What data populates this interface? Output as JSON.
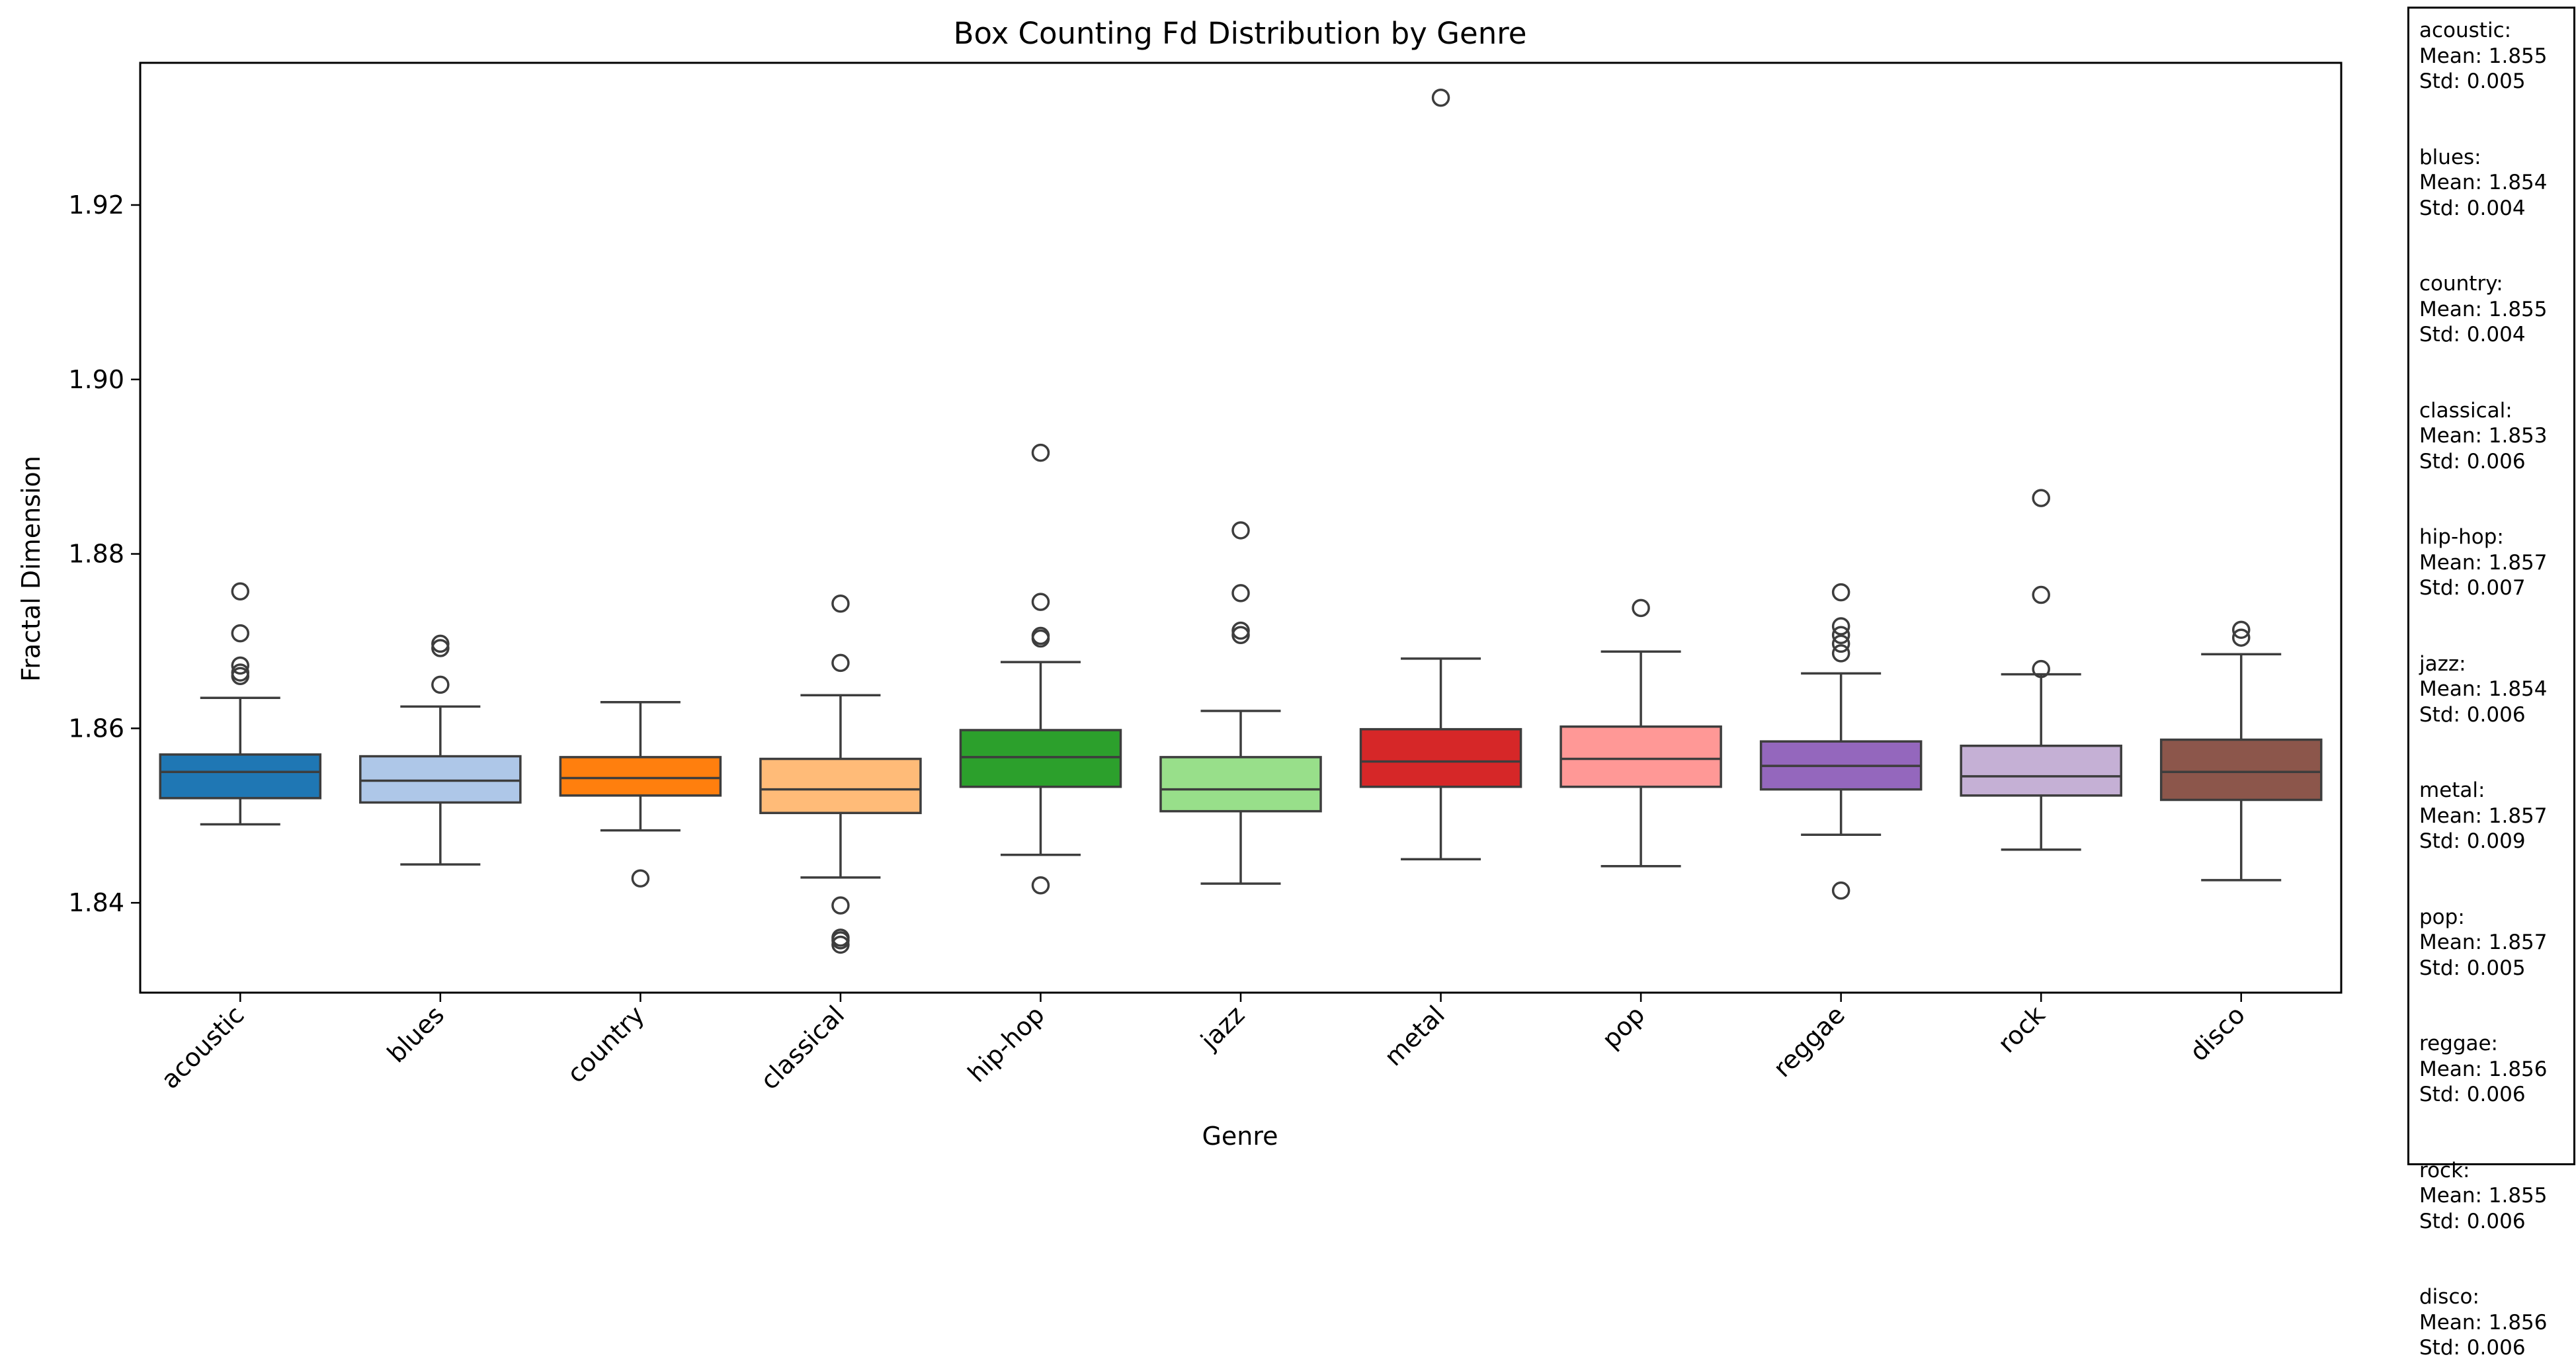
{
  "chart_data": {
    "type": "box",
    "title": "Box Counting Fd Distribution by Genre",
    "xlabel": "Genre",
    "ylabel": "Fractal Dimension",
    "ylim": [
      1.8297,
      1.9363
    ],
    "yticks": [
      "1.84",
      "1.86",
      "1.88",
      "1.90",
      "1.92"
    ],
    "grid": false,
    "categories": [
      "acoustic",
      "blues",
      "country",
      "classical",
      "hip-hop",
      "jazz",
      "metal",
      "pop",
      "reggae",
      "rock",
      "disco"
    ],
    "colors": [
      "#1f77b4",
      "#aec7e8",
      "#ff7f0e",
      "#ffbb78",
      "#2ca02c",
      "#98df8a",
      "#d62728",
      "#ff9896",
      "#9467bd",
      "#c5b0d5",
      "#8c564b"
    ],
    "boxes": [
      {
        "genre": "acoustic",
        "whisker_low": 1.849,
        "q1": 1.852,
        "median": 1.855,
        "q3": 1.857,
        "whisker_high": 1.8635,
        "outliers": [
          1.8757,
          1.8709,
          1.8672,
          1.8664,
          1.866
        ]
      },
      {
        "genre": "blues",
        "whisker_low": 1.8444,
        "q1": 1.8515,
        "median": 1.854,
        "q3": 1.8568,
        "whisker_high": 1.8625,
        "outliers": [
          1.8697,
          1.8692,
          1.865
        ]
      },
      {
        "genre": "country",
        "whisker_low": 1.8483,
        "q1": 1.8523,
        "median": 1.8543,
        "q3": 1.8567,
        "whisker_high": 1.863,
        "outliers": [
          1.8428
        ]
      },
      {
        "genre": "classical",
        "whisker_low": 1.8429,
        "q1": 1.8503,
        "median": 1.853,
        "q3": 1.8565,
        "whisker_high": 1.8638,
        "outliers": [
          1.8743,
          1.8675,
          1.8397,
          1.836,
          1.8357,
          1.8352
        ]
      },
      {
        "genre": "hip-hop",
        "whisker_low": 1.8455,
        "q1": 1.8533,
        "median": 1.8567,
        "q3": 1.8598,
        "whisker_high": 1.8676,
        "outliers": [
          1.8916,
          1.8745,
          1.8706,
          1.8703,
          1.842
        ]
      },
      {
        "genre": "jazz",
        "whisker_low": 1.8422,
        "q1": 1.8505,
        "median": 1.853,
        "q3": 1.8567,
        "whisker_high": 1.862,
        "outliers": [
          1.8827,
          1.8755,
          1.8712,
          1.8707
        ]
      },
      {
        "genre": "metal",
        "whisker_low": 1.845,
        "q1": 1.8533,
        "median": 1.8562,
        "q3": 1.8599,
        "whisker_high": 1.868,
        "outliers": [
          1.9323
        ]
      },
      {
        "genre": "pop",
        "whisker_low": 1.8442,
        "q1": 1.8533,
        "median": 1.8565,
        "q3": 1.8602,
        "whisker_high": 1.8688,
        "outliers": [
          1.8738
        ]
      },
      {
        "genre": "reggae",
        "whisker_low": 1.8478,
        "q1": 1.853,
        "median": 1.8557,
        "q3": 1.8585,
        "whisker_high": 1.8663,
        "outliers": [
          1.8756,
          1.8717,
          1.8707,
          1.8697,
          1.8686,
          1.8414
        ]
      },
      {
        "genre": "rock",
        "whisker_low": 1.8461,
        "q1": 1.8523,
        "median": 1.8545,
        "q3": 1.858,
        "whisker_high": 1.8662,
        "outliers": [
          1.8864,
          1.8753,
          1.8668
        ]
      },
      {
        "genre": "disco",
        "whisker_low": 1.8426,
        "q1": 1.8518,
        "median": 1.855,
        "q3": 1.8587,
        "whisker_high": 1.8685,
        "outliers": [
          1.8713,
          1.8704
        ]
      }
    ]
  },
  "stats_panel": [
    {
      "genre": "acoustic:",
      "mean": "Mean: 1.855",
      "std": "Std: 0.005"
    },
    {
      "genre": "blues:",
      "mean": "Mean: 1.854",
      "std": "Std: 0.004"
    },
    {
      "genre": "country:",
      "mean": "Mean: 1.855",
      "std": "Std: 0.004"
    },
    {
      "genre": "classical:",
      "mean": "Mean: 1.853",
      "std": "Std: 0.006"
    },
    {
      "genre": "hip-hop:",
      "mean": "Mean: 1.857",
      "std": "Std: 0.007"
    },
    {
      "genre": "jazz:",
      "mean": "Mean: 1.854",
      "std": "Std: 0.006"
    },
    {
      "genre": "metal:",
      "mean": "Mean: 1.857",
      "std": "Std: 0.009"
    },
    {
      "genre": "pop:",
      "mean": "Mean: 1.857",
      "std": "Std: 0.005"
    },
    {
      "genre": "reggae:",
      "mean": "Mean: 1.856",
      "std": "Std: 0.006"
    },
    {
      "genre": "rock:",
      "mean": "Mean: 1.855",
      "std": "Std: 0.006"
    },
    {
      "genre": "disco:",
      "mean": "Mean: 1.856",
      "std": "Std: 0.006"
    }
  ]
}
